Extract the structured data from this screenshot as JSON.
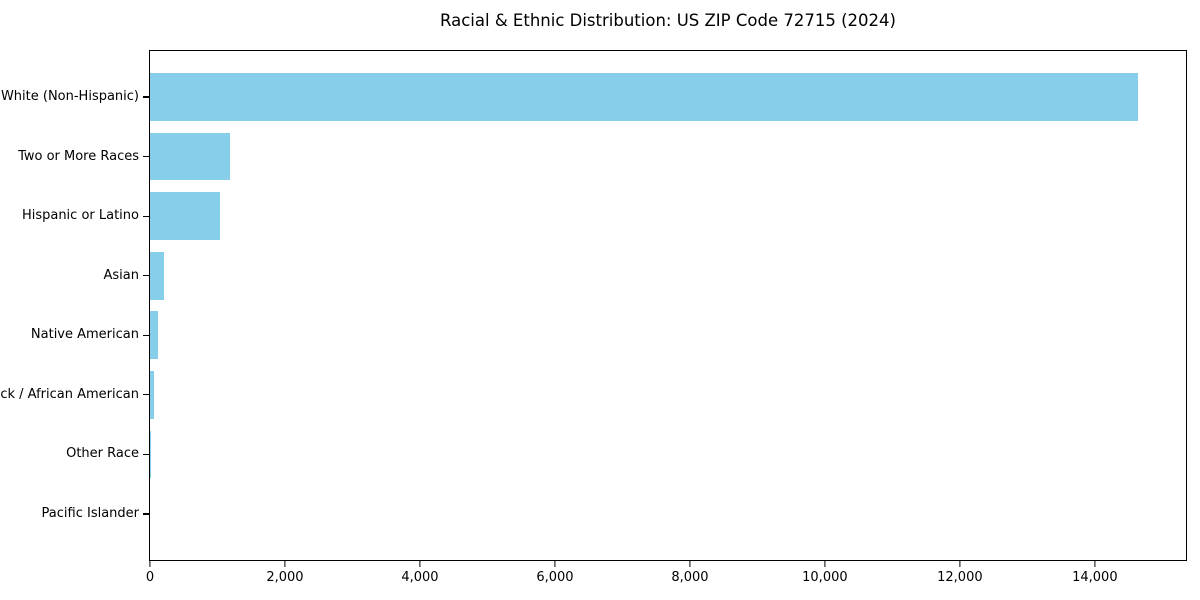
{
  "title": "Racial & Ethnic Distribution: US ZIP Code 72715 (2024)",
  "colors": {
    "bar": "#87CEEB",
    "axis": "#000000",
    "text": "#000000",
    "background": "#FFFFFF"
  },
  "chart_data": {
    "type": "bar",
    "orientation": "horizontal",
    "title": "Racial & Ethnic Distribution: US ZIP Code 72715 (2024)",
    "categories": [
      "White (Non-Hispanic)",
      "Two or More Races",
      "Hispanic or Latino",
      "Asian",
      "Native American",
      "Black / African American",
      "Other Race",
      "Pacific Islander"
    ],
    "values": [
      14640,
      1190,
      1040,
      210,
      120,
      60,
      15,
      0
    ],
    "xlabel": "",
    "ylabel": "",
    "xlim": [
      0,
      15380
    ],
    "xticks": [
      0,
      2000,
      4000,
      6000,
      8000,
      10000,
      12000,
      14000
    ],
    "xtick_labels": [
      "0",
      "2,000",
      "4,000",
      "6,000",
      "8,000",
      "10,000",
      "12,000",
      "14,000"
    ],
    "bar_color": "#87CEEB",
    "grid": false,
    "legend_position": "none"
  }
}
